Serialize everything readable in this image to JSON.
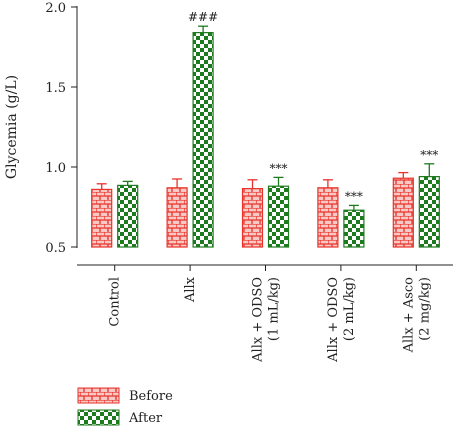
{
  "chart_data": {
    "type": "bar",
    "ylabel": "Glycemia (g/L)",
    "ylim": [
      0.5,
      2.0
    ],
    "yticks": [
      "0.5",
      "1.0",
      "1.5",
      "2.0"
    ],
    "categories": [
      [
        "Control"
      ],
      [
        "Allx"
      ],
      [
        "Allx + ODSO",
        "(1 mL/kg)"
      ],
      [
        "Allx + ODSO",
        "(2 mL/kg)"
      ],
      [
        "Allx + Asco",
        "(2 mg/kg)"
      ]
    ],
    "series": [
      {
        "name": "Before",
        "color": "#e8322a",
        "pattern": "brick-hatch",
        "values": [
          0.86,
          0.87,
          0.865,
          0.87,
          0.93
        ],
        "errors": [
          0.035,
          0.055,
          0.055,
          0.05,
          0.035
        ]
      },
      {
        "name": "After",
        "color": "#1e7a1e",
        "pattern": "checkerboard",
        "values": [
          0.885,
          1.84,
          0.88,
          0.73,
          0.94
        ],
        "errors": [
          0.025,
          0.04,
          0.055,
          0.03,
          0.08
        ]
      }
    ],
    "annotations": [
      {
        "category": 1,
        "series": "After",
        "text": "###"
      },
      {
        "category": 2,
        "series": "After",
        "text": "***"
      },
      {
        "category": 3,
        "series": "After",
        "text": "***"
      },
      {
        "category": 4,
        "series": "After",
        "text": "***"
      }
    ],
    "legend": {
      "position": "bottom-left",
      "entries": [
        "Before",
        "After"
      ]
    },
    "grid": false
  }
}
